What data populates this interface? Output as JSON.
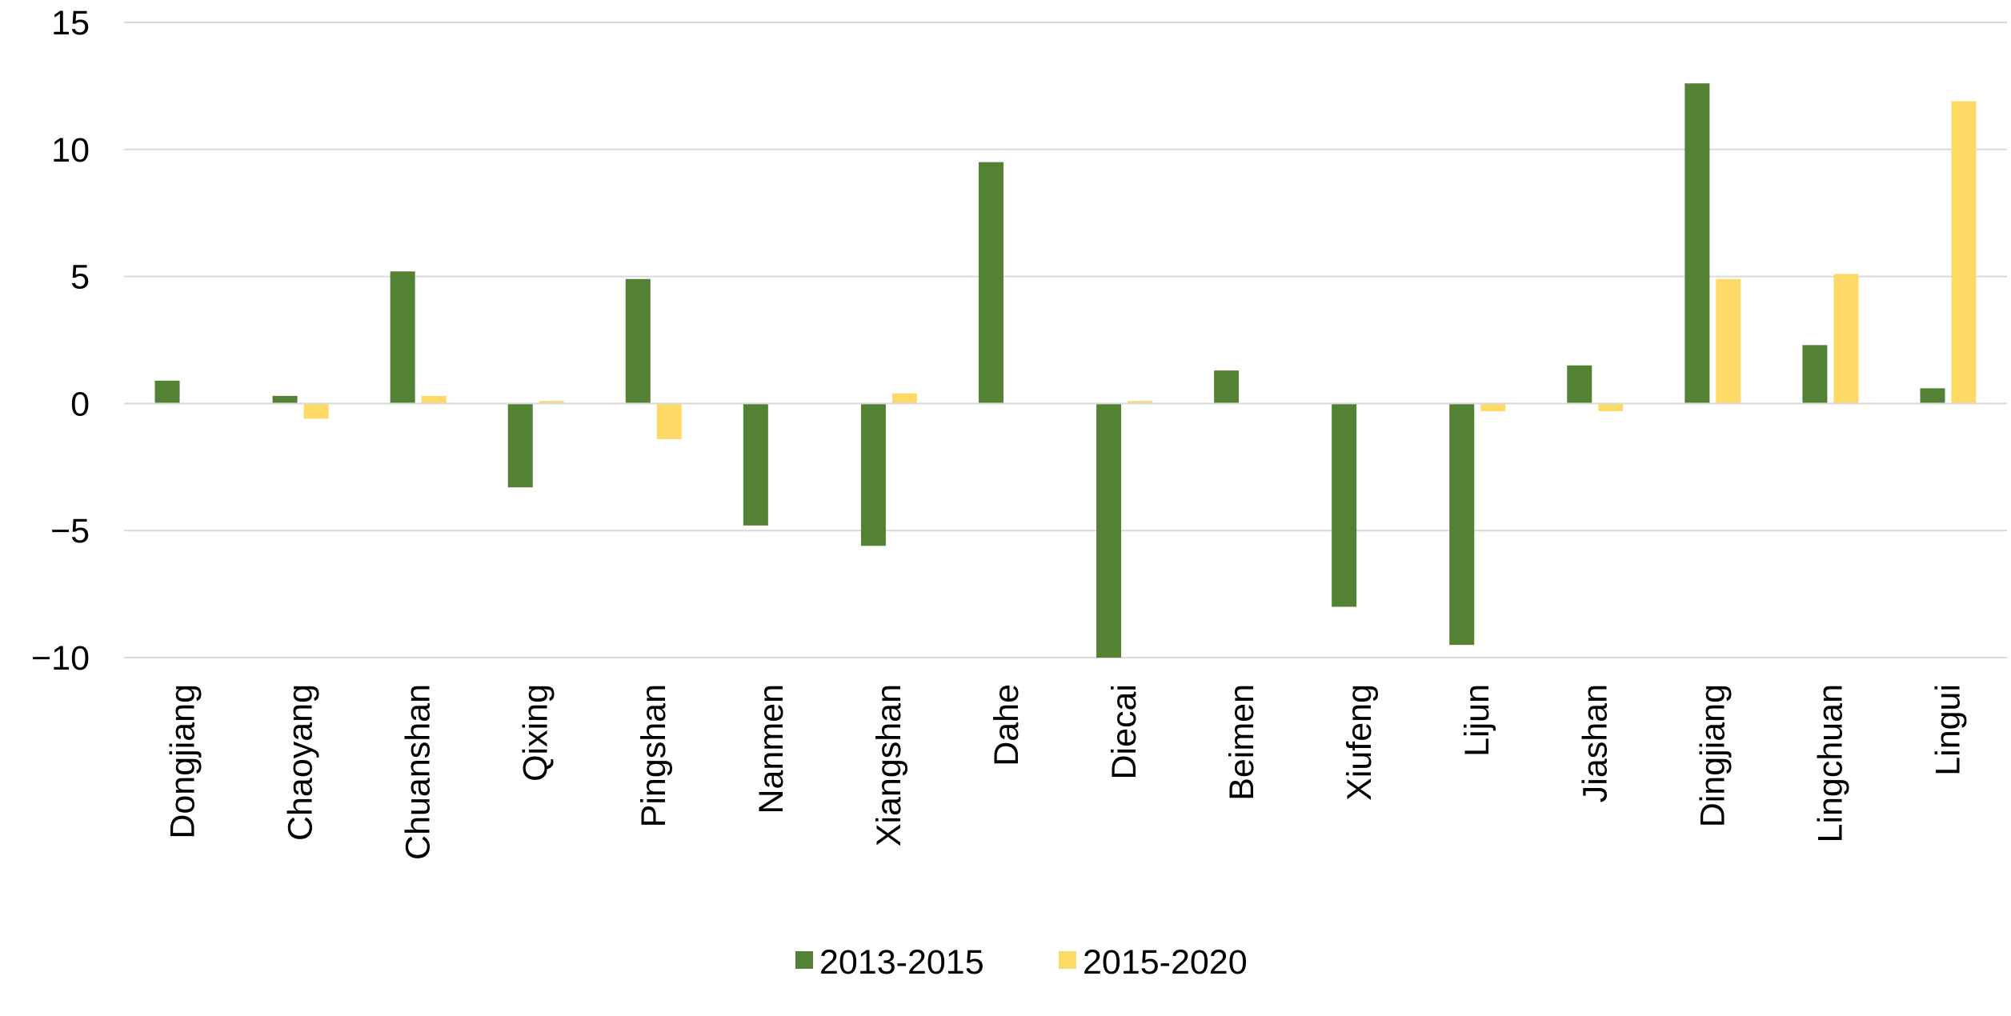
{
  "chart_data": {
    "type": "bar",
    "title": "",
    "xlabel": "",
    "ylabel": "",
    "ylim": [
      -10,
      15
    ],
    "yticks": [
      -10,
      -5,
      0,
      5,
      10,
      15
    ],
    "y_tick_labels": [
      "−10",
      "−5",
      "0",
      "5",
      "10",
      "15"
    ],
    "grid": "horizontal",
    "legend": "bottom",
    "categories": [
      "Dongjiang",
      "Chaoyang",
      "Chuanshan",
      "Qixing",
      "Pingshan",
      "Nanmen",
      "Xiangshan",
      "Dahe",
      "Diecai",
      "Beimen",
      "Xiufeng",
      "Lijun",
      "Jiashan",
      "Dingjiang",
      "Lingchuan",
      "Lingui"
    ],
    "series": [
      {
        "name": "2013-2015",
        "color": "#548235",
        "values": [
          0.9,
          0.3,
          5.2,
          -3.3,
          4.9,
          -4.8,
          -5.6,
          9.5,
          -10.0,
          1.3,
          -8.0,
          -9.5,
          1.5,
          12.6,
          2.3,
          0.6
        ]
      },
      {
        "name": "2015-2020",
        "color": "#FFD966",
        "values": [
          0.0,
          -0.6,
          0.3,
          0.1,
          -1.4,
          0.0,
          0.4,
          0.0,
          0.1,
          0.0,
          0.0,
          -0.3,
          -0.3,
          4.9,
          5.1,
          11.9
        ]
      }
    ],
    "colors": {
      "grid": "#D9D9D9",
      "zero_line": "#D9D9D9",
      "text": "#000000"
    }
  }
}
